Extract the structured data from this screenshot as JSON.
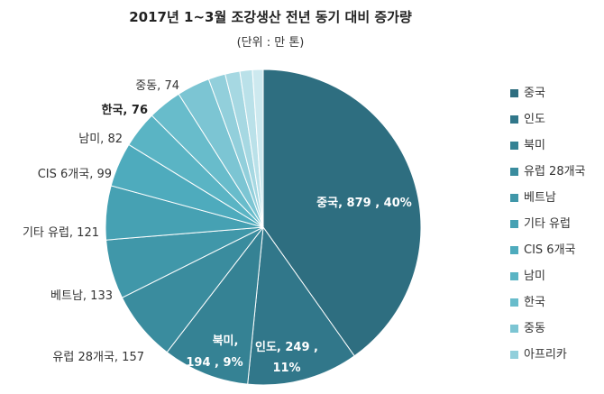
{
  "chart_data": {
    "type": "pie",
    "title": "2017년 1~3월 조강생산 전년 동기 대비 증가량",
    "subtitle": "(단위 : 만 톤)",
    "legend_position": "right",
    "slices": [
      {
        "name": "중국",
        "value": 879,
        "label": "중국, 879 , 40%",
        "color": "#2e6e80"
      },
      {
        "name": "인도",
        "value": 249,
        "label": "인도, 249 , 11%",
        "color": "#31778a"
      },
      {
        "name": "북미",
        "value": 194,
        "label": "북미, 194 , 9%",
        "color": "#358294"
      },
      {
        "name": "유럽 28개국",
        "value": 157,
        "label": "유럽 28개국, 157",
        "color": "#3a8c9e"
      },
      {
        "name": "베트남",
        "value": 133,
        "label": "베트남, 133",
        "color": "#4097a9"
      },
      {
        "name": "기타 유럽",
        "value": 121,
        "label": "기타 유럽, 121",
        "color": "#46a1b3"
      },
      {
        "name": "CIS 6개국",
        "value": 99,
        "label": "CIS 6개국, 99",
        "color": "#4eabbd"
      },
      {
        "name": "남미",
        "value": 82,
        "label": "남미, 82",
        "color": "#5ab4c4"
      },
      {
        "name": "한국",
        "value": 76,
        "label": "한국, 76",
        "color": "#68bccb"
      },
      {
        "name": "중동",
        "value": 74,
        "label": "중동, 74",
        "color": "#7cc5d3"
      },
      {
        "name": "아프리카",
        "value": null,
        "label": "",
        "color": "#92cfdb"
      },
      {
        "name": "",
        "value": null,
        "label": "",
        "color": "#a6d8e2"
      },
      {
        "name": "",
        "value": null,
        "label": "",
        "color": "#bae1e9"
      },
      {
        "name": "",
        "value": null,
        "label": "",
        "color": "#cde9ef"
      }
    ],
    "small_slice_estimates": [
      38,
      33,
      28,
      24
    ]
  }
}
